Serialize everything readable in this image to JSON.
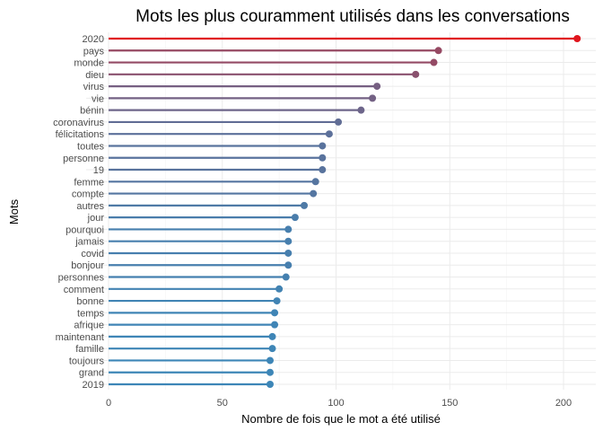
{
  "chart_data": {
    "type": "lollipop",
    "title": "Mots les plus couramment utilisés dans les conversations",
    "xlabel": "Nombre de fois que le mot a été utilisé",
    "ylabel": "Mots",
    "xlim": [
      0,
      210
    ],
    "xticks": [
      0,
      50,
      100,
      150,
      200
    ],
    "grid": true,
    "color_low": "#3d86b7",
    "color_high": "#e0161e",
    "categories": [
      "2020",
      "pays",
      "monde",
      "dieu",
      "virus",
      "vie",
      "bénin",
      "coronavirus",
      "félicitations",
      "toutes",
      "personne",
      "19",
      "femme",
      "compte",
      "autres",
      "jour",
      "pourquoi",
      "jamais",
      "covid",
      "bonjour",
      "personnes",
      "comment",
      "bonne",
      "temps",
      "afrique",
      "maintenant",
      "famille",
      "toujours",
      "grand",
      "2019"
    ],
    "values": [
      206,
      145,
      143,
      135,
      118,
      116,
      111,
      101,
      97,
      94,
      94,
      94,
      91,
      90,
      86,
      82,
      79,
      79,
      79,
      79,
      78,
      75,
      74,
      73,
      73,
      72,
      72,
      71,
      71,
      71
    ]
  }
}
